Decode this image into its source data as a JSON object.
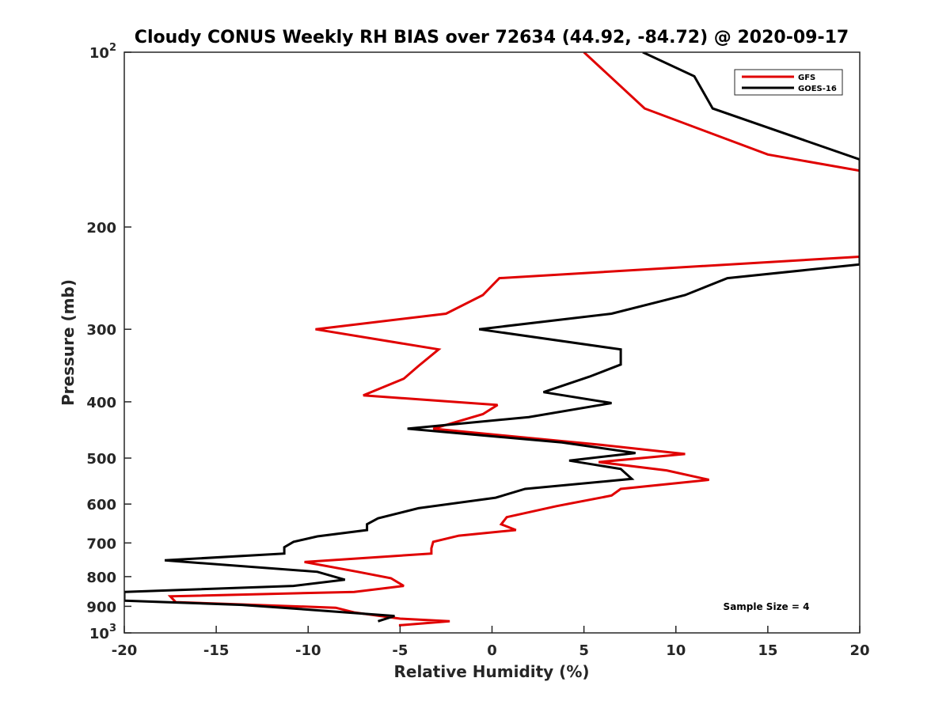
{
  "chart_data": {
    "type": "line",
    "title": "Cloudy CONUS Weekly RH BIAS over 72634 (44.92, -84.72) @ 2020-09-17",
    "xlabel": "Relative Humidity (%)",
    "ylabel": "Pressure (mb)",
    "xlim": [
      -20,
      20
    ],
    "ylim": [
      100,
      1000
    ],
    "yscale": "log",
    "y_reversed": true,
    "grid": false,
    "legend_position": "top-right",
    "x_ticks": [
      {
        "value": -20,
        "label": "-20"
      },
      {
        "value": -15,
        "label": "-15"
      },
      {
        "value": -10,
        "label": "-10"
      },
      {
        "value": -5,
        "label": "-5"
      },
      {
        "value": 0,
        "label": "0"
      },
      {
        "value": 5,
        "label": "5"
      },
      {
        "value": 10,
        "label": "10"
      },
      {
        "value": 15,
        "label": "15"
      },
      {
        "value": 20,
        "label": "20"
      }
    ],
    "y_ticks": [
      {
        "value": 100,
        "base": "10",
        "exp": "2"
      },
      {
        "value": 200,
        "label": "200"
      },
      {
        "value": 300,
        "label": "300"
      },
      {
        "value": 400,
        "label": "400"
      },
      {
        "value": 500,
        "label": "500"
      },
      {
        "value": 600,
        "label": "600"
      },
      {
        "value": 700,
        "label": "700"
      },
      {
        "value": 800,
        "label": "800"
      },
      {
        "value": 900,
        "label": "900"
      },
      {
        "value": 1000,
        "base": "10",
        "exp": "3"
      }
    ],
    "annotation": "Sample Size = 4",
    "series": [
      {
        "name": "GFS",
        "color": "#e00000",
        "points": [
          [
            5.0,
            100
          ],
          [
            8.3,
            125
          ],
          [
            15.0,
            150
          ],
          [
            20.0,
            160
          ],
          [
            20.0,
            225
          ],
          [
            0.4,
            245
          ],
          [
            -0.5,
            262
          ],
          [
            -2.5,
            282
          ],
          [
            -9.6,
            300
          ],
          [
            -2.9,
            325
          ],
          [
            -4.0,
            347
          ],
          [
            -4.8,
            365
          ],
          [
            -7.0,
            390
          ],
          [
            0.3,
            405
          ],
          [
            -0.5,
            420
          ],
          [
            -3.2,
            445
          ],
          [
            6.1,
            475
          ],
          [
            10.5,
            492
          ],
          [
            5.8,
            508
          ],
          [
            9.5,
            525
          ],
          [
            11.8,
            545
          ],
          [
            7.0,
            565
          ],
          [
            6.5,
            580
          ],
          [
            3.5,
            605
          ],
          [
            0.8,
            632
          ],
          [
            0.5,
            650
          ],
          [
            1.3,
            665
          ],
          [
            -1.8,
            680
          ],
          [
            -3.2,
            697
          ],
          [
            -3.3,
            715
          ],
          [
            -3.3,
            730
          ],
          [
            -10.2,
            755
          ],
          [
            -7.3,
            785
          ],
          [
            -5.5,
            805
          ],
          [
            -4.8,
            830
          ],
          [
            -7.5,
            850
          ],
          [
            -17.5,
            865
          ],
          [
            -17.2,
            885
          ],
          [
            -8.5,
            905
          ],
          [
            -7.5,
            922
          ],
          [
            -5.0,
            945
          ],
          [
            -2.3,
            955
          ],
          [
            -5.0,
            970
          ],
          [
            -5.0,
            975
          ]
        ]
      },
      {
        "name": "GOES-16",
        "color": "#000000",
        "points": [
          [
            8.2,
            100
          ],
          [
            11.0,
            110
          ],
          [
            12.0,
            125
          ],
          [
            20.0,
            153
          ],
          [
            20.0,
            232
          ],
          [
            12.8,
            245
          ],
          [
            10.5,
            262
          ],
          [
            6.5,
            282
          ],
          [
            -0.7,
            300
          ],
          [
            7.0,
            325
          ],
          [
            7.0,
            345
          ],
          [
            5.3,
            362
          ],
          [
            2.8,
            385
          ],
          [
            6.5,
            402
          ],
          [
            2.0,
            425
          ],
          [
            -4.6,
            445
          ],
          [
            3.8,
            470
          ],
          [
            7.8,
            490
          ],
          [
            4.2,
            505
          ],
          [
            7.0,
            522
          ],
          [
            7.6,
            543
          ],
          [
            1.8,
            565
          ],
          [
            0.2,
            585
          ],
          [
            -4.0,
            610
          ],
          [
            -6.2,
            635
          ],
          [
            -6.8,
            650
          ],
          [
            -6.8,
            665
          ],
          [
            -9.5,
            682
          ],
          [
            -10.8,
            697
          ],
          [
            -11.3,
            712
          ],
          [
            -11.3,
            730
          ],
          [
            -17.8,
            750
          ],
          [
            -9.5,
            785
          ],
          [
            -8.0,
            810
          ],
          [
            -10.8,
            830
          ],
          [
            -20.0,
            850
          ],
          [
            -20.0,
            880
          ],
          [
            -13.6,
            895
          ],
          [
            -10.4,
            910
          ],
          [
            -5.3,
            935
          ],
          [
            -6.2,
            955
          ]
        ]
      }
    ]
  }
}
